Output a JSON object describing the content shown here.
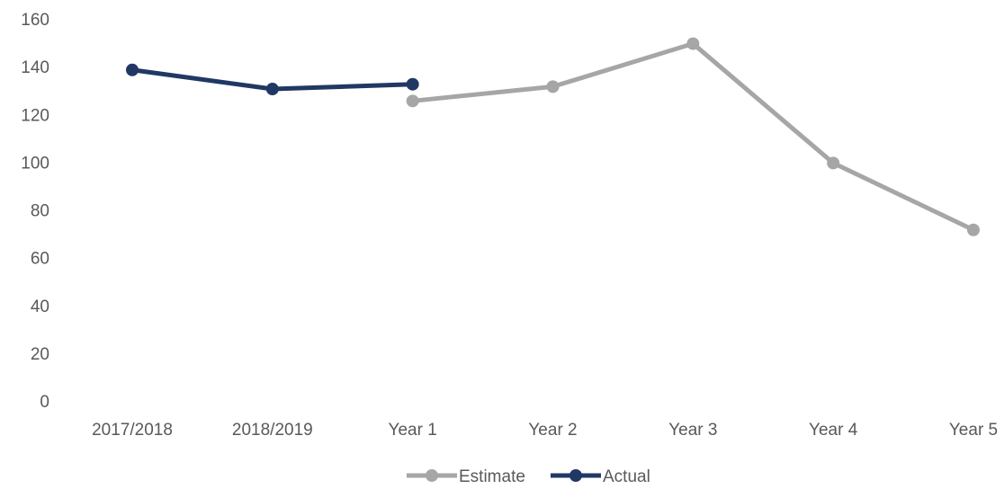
{
  "chart_data": {
    "type": "line",
    "categories": [
      "2017/2018",
      "2018/2019",
      "Year 1",
      "Year 2",
      "Year 3",
      "Year 4",
      "Year 5"
    ],
    "y_ticks": [
      "0",
      "20",
      "40",
      "60",
      "80",
      "100",
      "120",
      "140",
      "160"
    ],
    "ylim": [
      0,
      160
    ],
    "grid": false,
    "legend_position": "bottom",
    "series": [
      {
        "name": "Estimate",
        "color": "#A6A6A6",
        "values": [
          null,
          null,
          126,
          132,
          150,
          100,
          72
        ]
      },
      {
        "name": "Actual",
        "color": "#203864",
        "values": [
          139,
          131,
          133,
          null,
          null,
          null,
          null
        ]
      }
    ]
  }
}
